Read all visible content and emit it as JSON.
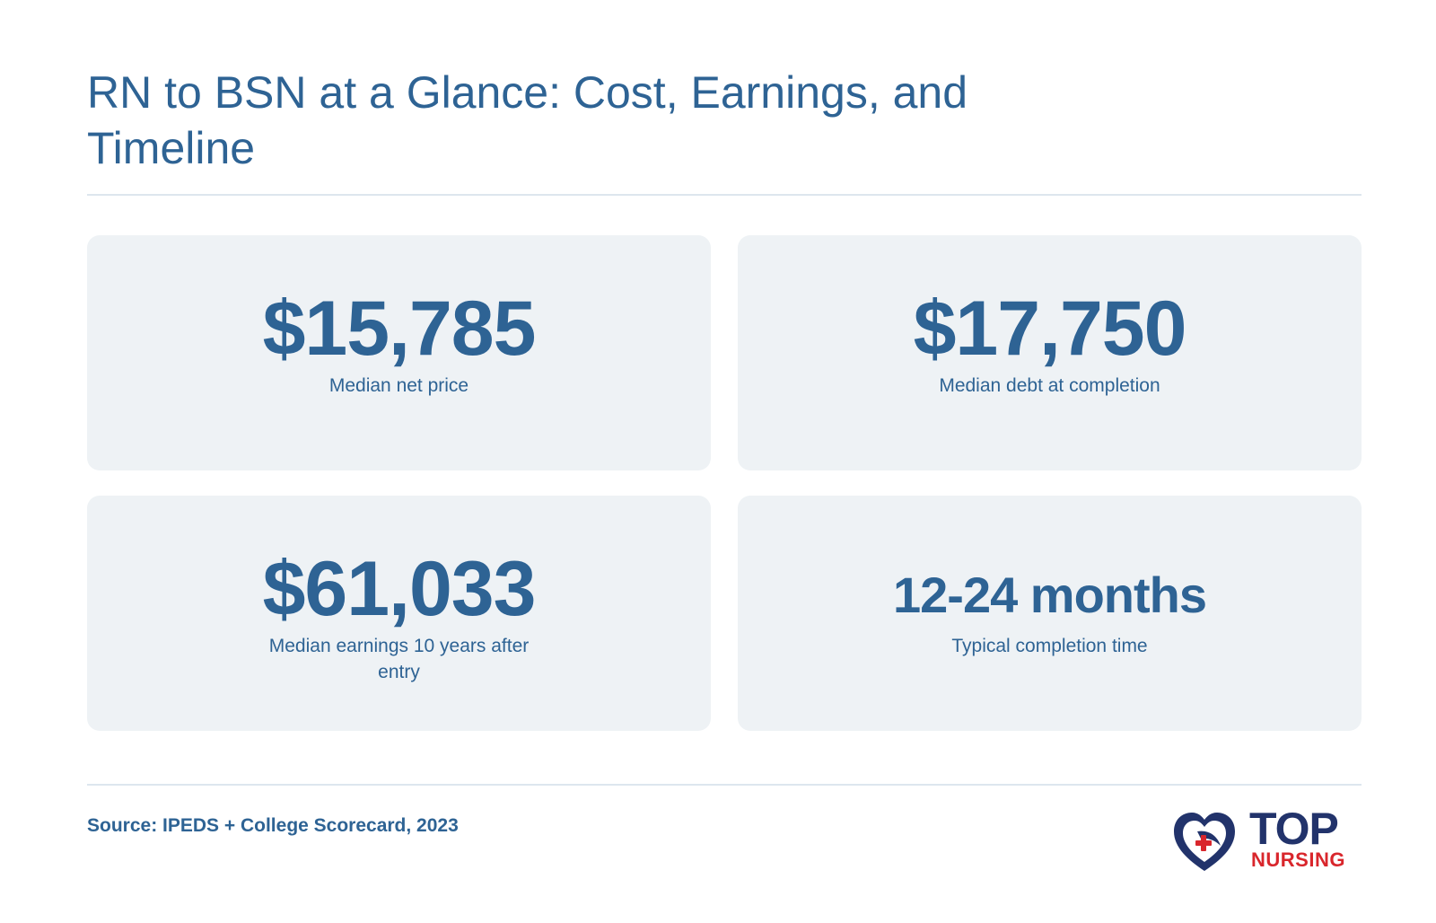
{
  "header": {
    "title": "RN to BSN at a Glance: Cost, Earnings, and Timeline"
  },
  "stats": [
    {
      "value": "$15,785",
      "label": "Median net price"
    },
    {
      "value": "$17,750",
      "label": "Median debt at completion"
    },
    {
      "value": "$61,033",
      "label": "Median earnings 10 years after entry"
    },
    {
      "value": "12-24 months",
      "label": "Typical completion time"
    }
  ],
  "footer": {
    "source": "Source: IPEDS + College Scorecard, 2023",
    "logo": {
      "top_text": "TOP",
      "bottom_text": "NURSING"
    }
  },
  "colors": {
    "primary_text": "#2e6394",
    "card_background": "#eef2f5",
    "divider": "#dde6ee",
    "logo_navy": "#22336b",
    "logo_red": "#d9262c"
  }
}
